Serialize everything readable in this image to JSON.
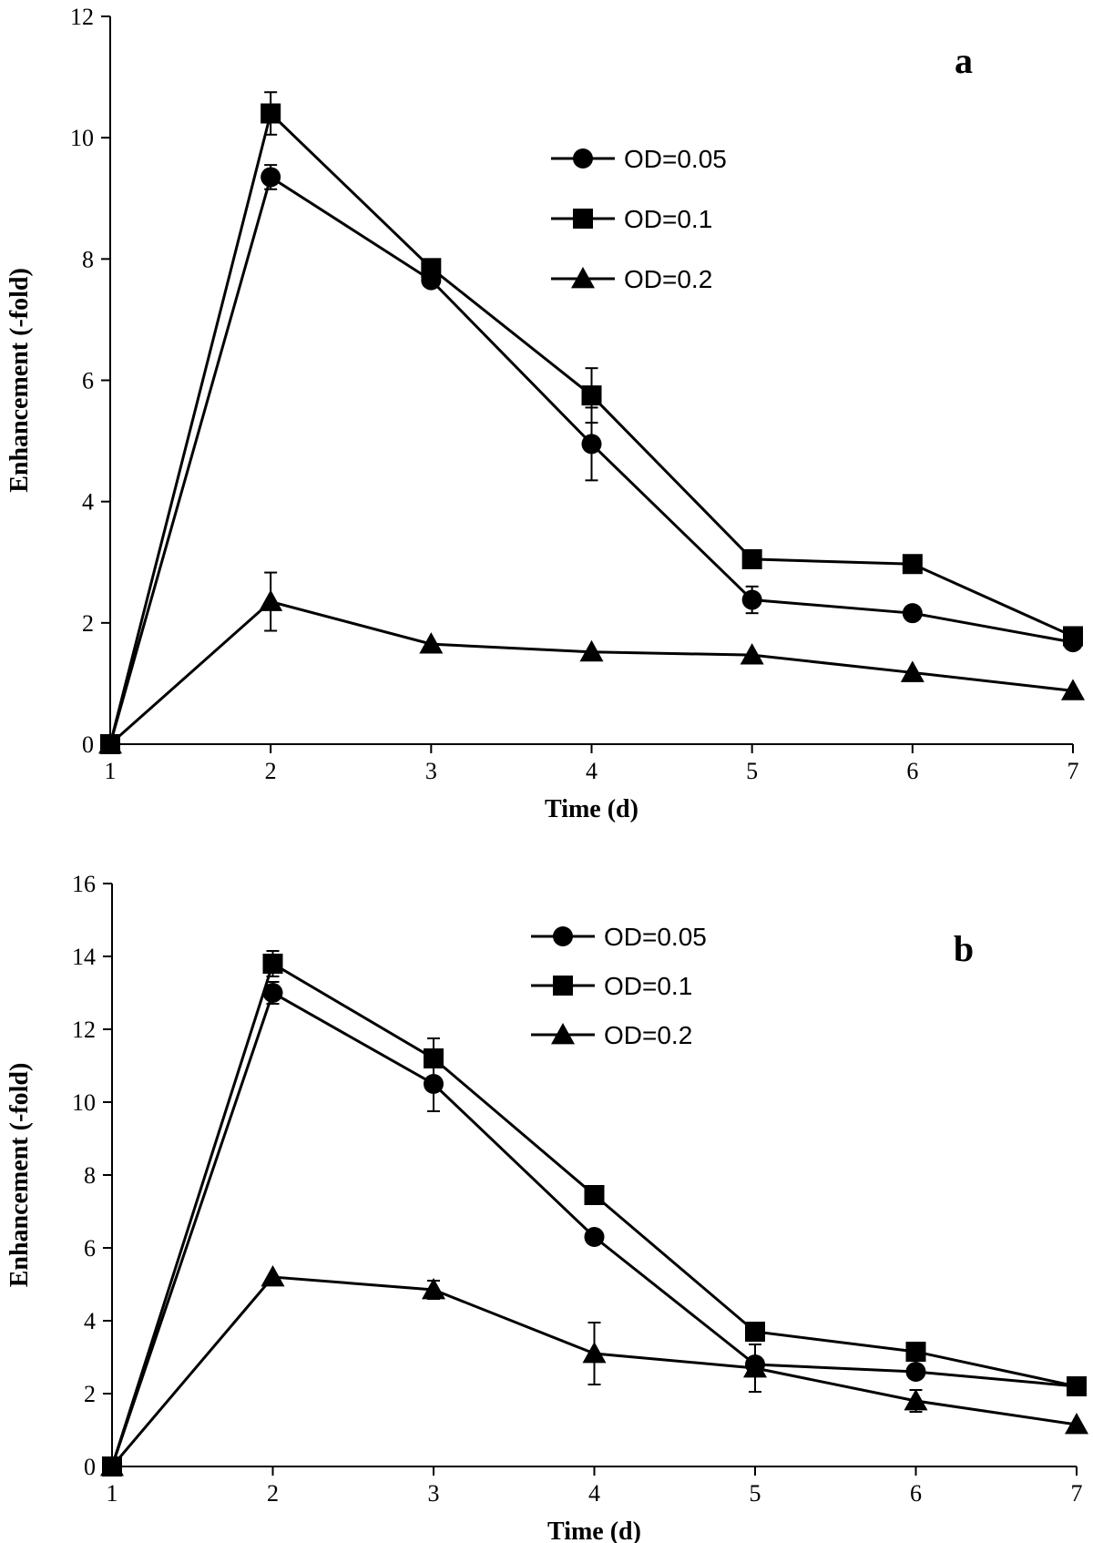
{
  "chart_data": [
    {
      "type": "line",
      "panel_label": "a",
      "xlabel": "Time (d)",
      "ylabel": "Enhancement (-fold)",
      "x": [
        1,
        2,
        3,
        4,
        5,
        6,
        7
      ],
      "xlim": [
        1,
        7
      ],
      "ylim": [
        0,
        12
      ],
      "yticks": [
        0,
        2,
        4,
        6,
        8,
        10,
        12
      ],
      "xticks": [
        1,
        2,
        3,
        4,
        5,
        6,
        7
      ],
      "grid": false,
      "legend_position": "top-right",
      "series": [
        {
          "name": "OD=0.05",
          "marker": "circle",
          "values": [
            0,
            9.35,
            7.65,
            4.95,
            2.38,
            2.16,
            1.68
          ],
          "errors": [
            0,
            0.2,
            0,
            0.6,
            0.22,
            0,
            0
          ]
        },
        {
          "name": "OD=0.1",
          "marker": "square",
          "values": [
            0,
            10.4,
            7.85,
            5.75,
            3.05,
            2.97,
            1.78
          ],
          "errors": [
            0,
            0.35,
            0,
            0.45,
            0,
            0,
            0
          ]
        },
        {
          "name": "OD=0.2",
          "marker": "triangle",
          "values": [
            0,
            2.35,
            1.65,
            1.52,
            1.47,
            1.18,
            0.88
          ],
          "errors": [
            0,
            0.48,
            0,
            0,
            0,
            0,
            0
          ]
        }
      ]
    },
    {
      "type": "line",
      "panel_label": "b",
      "xlabel": "Time (d)",
      "ylabel": "Enhancement (-fold)",
      "x": [
        1,
        2,
        3,
        4,
        5,
        6,
        7
      ],
      "xlim": [
        1,
        7
      ],
      "ylim": [
        0,
        16
      ],
      "yticks": [
        0,
        2,
        4,
        6,
        8,
        10,
        12,
        14,
        16
      ],
      "xticks": [
        1,
        2,
        3,
        4,
        5,
        6,
        7
      ],
      "grid": false,
      "legend_position": "top-right",
      "series": [
        {
          "name": "OD=0.05",
          "marker": "circle",
          "values": [
            0,
            13.0,
            10.5,
            6.3,
            2.8,
            2.6,
            2.2
          ],
          "errors": [
            0,
            0.3,
            0.75,
            0,
            0,
            0,
            0
          ]
        },
        {
          "name": "OD=0.1",
          "marker": "square",
          "values": [
            0,
            13.8,
            11.2,
            7.45,
            3.7,
            3.15,
            2.2
          ],
          "errors": [
            0,
            0.35,
            0.55,
            0,
            0,
            0,
            0
          ]
        },
        {
          "name": "OD=0.2",
          "marker": "triangle",
          "values": [
            0,
            5.2,
            4.85,
            3.1,
            2.7,
            1.8,
            1.15
          ],
          "errors": [
            0,
            0,
            0.25,
            0.85,
            0.65,
            0.3,
            0
          ]
        }
      ]
    }
  ]
}
